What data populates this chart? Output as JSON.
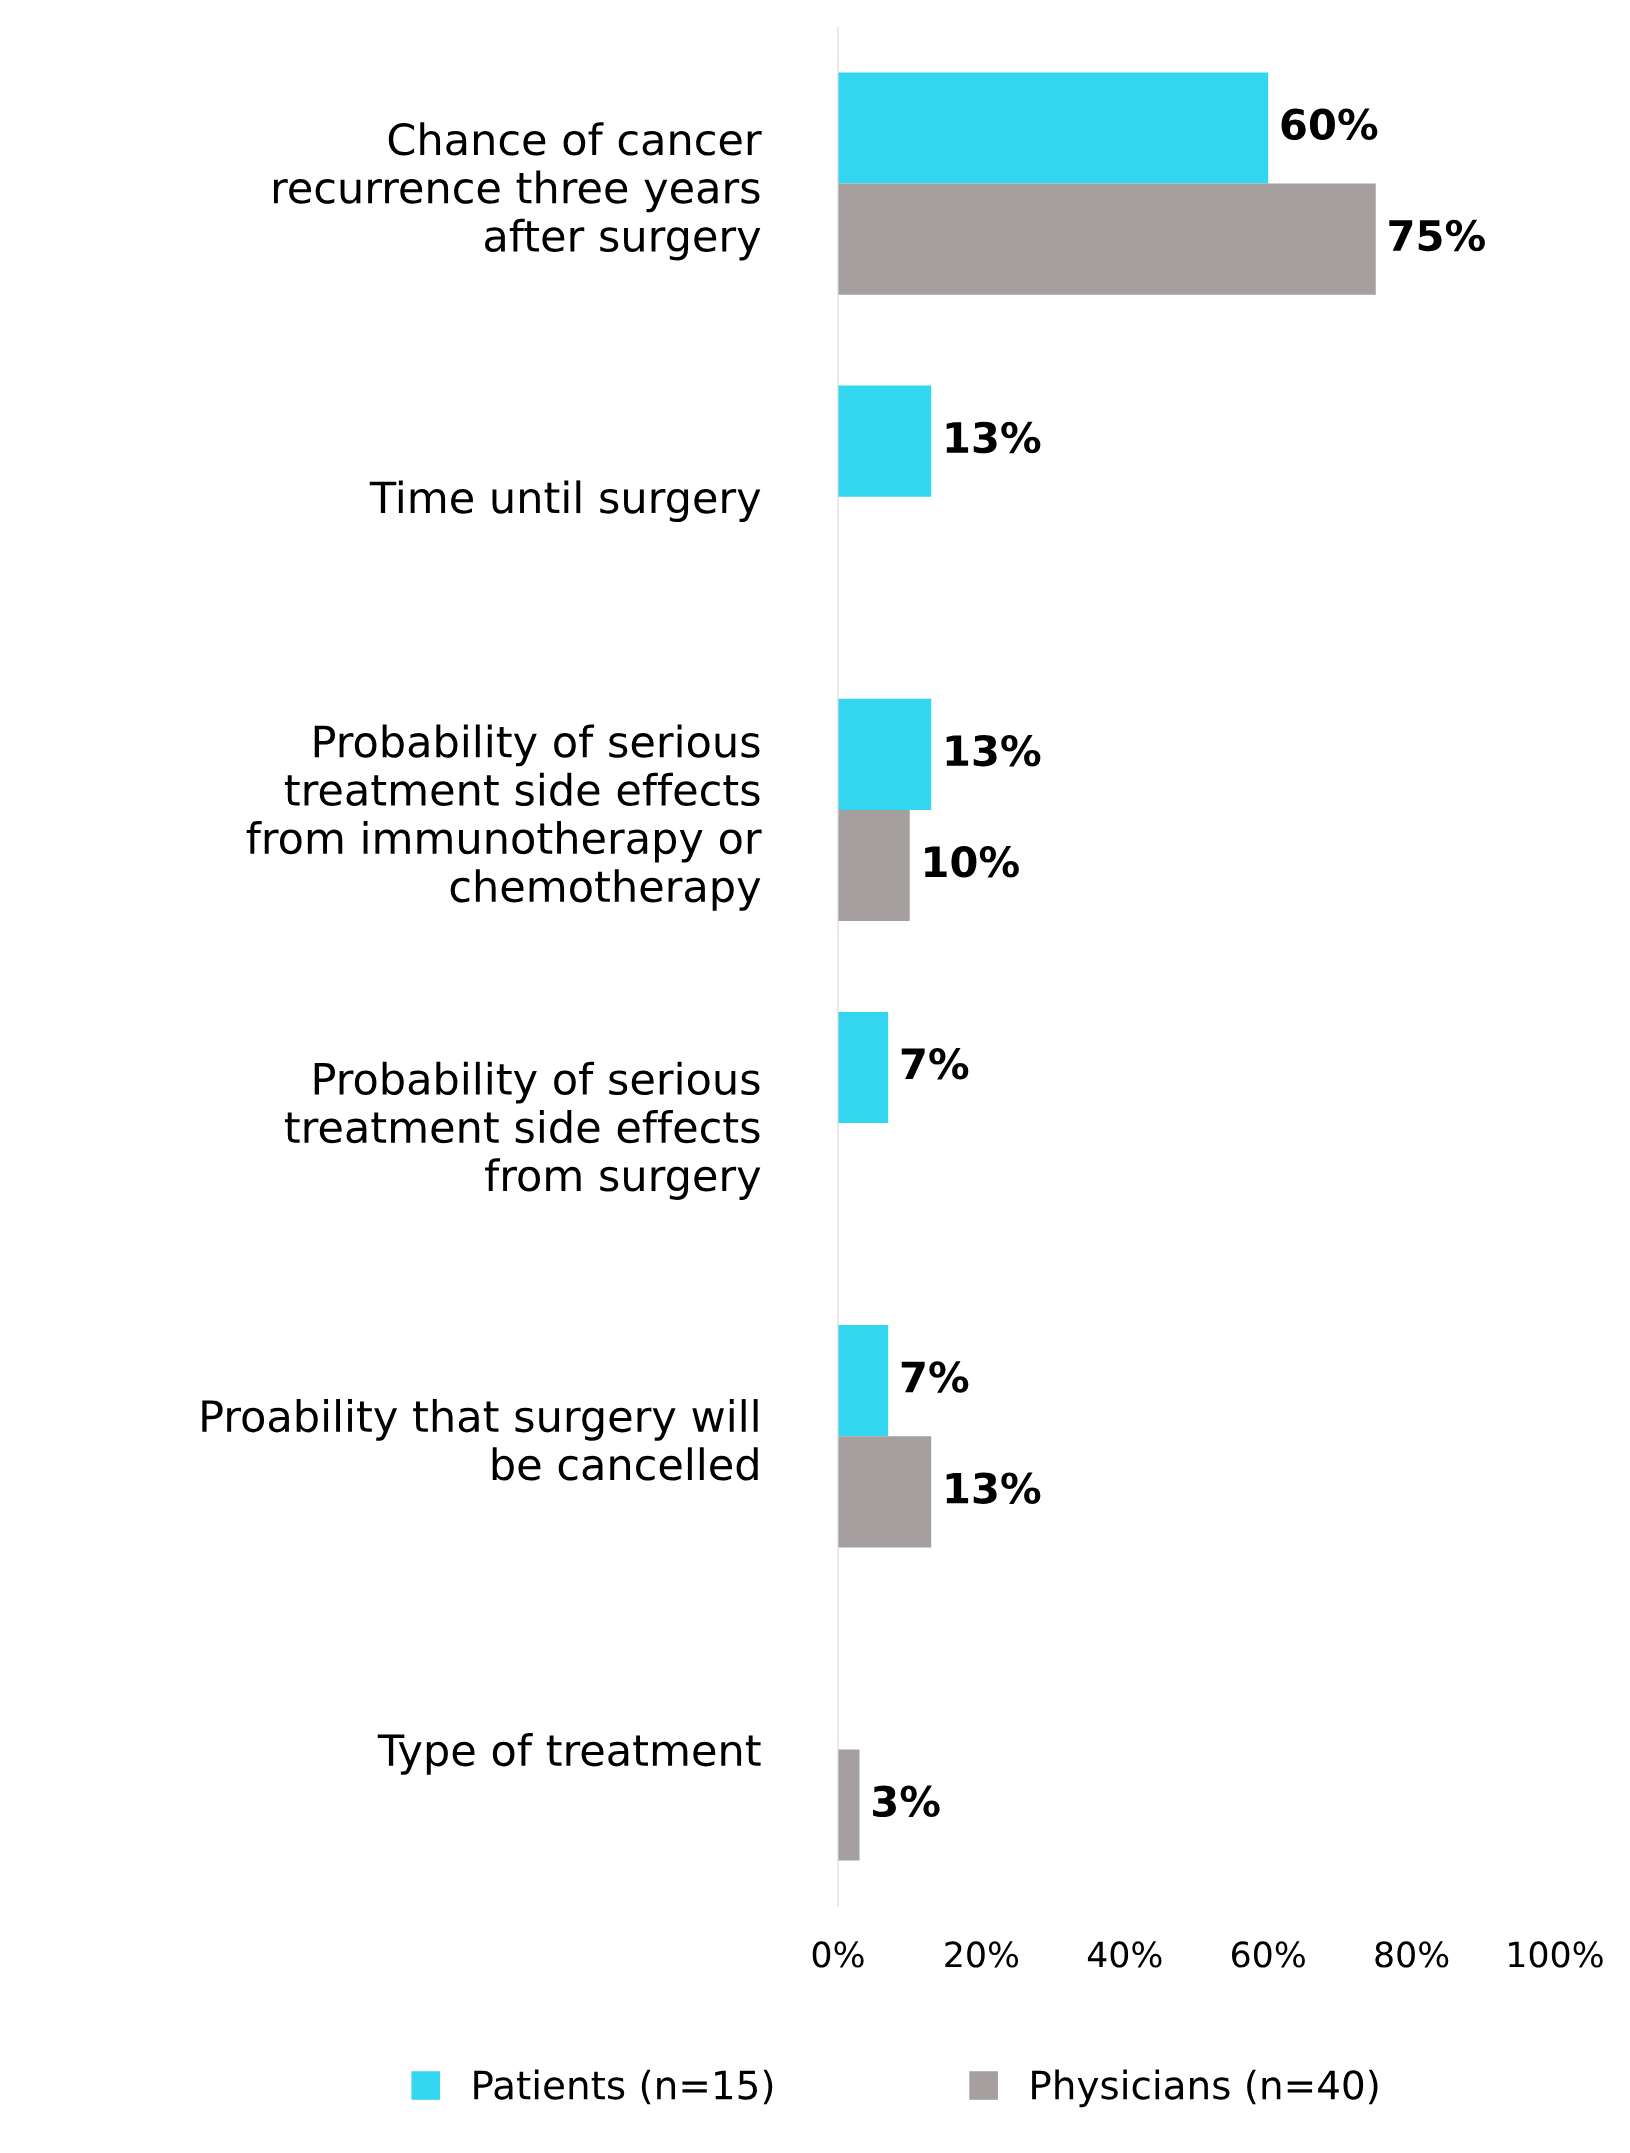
{
  "chart_data": {
    "type": "bar",
    "orientation": "horizontal",
    "categories": [
      "Chance of cancer\nrecurrence three years\nafter surgery",
      "Time until surgery",
      "Probability of serious\ntreatment side effects\nfrom immunotherapy or\nchemotherapy",
      "Probability of serious\ntreatment side effects\nfrom surgery",
      "Proability that surgery will\nbe cancelled",
      "Type of treatment"
    ],
    "series": [
      {
        "name": "Patients (n=15)",
        "color": "#33d6ef",
        "values": [
          60,
          13,
          13,
          7,
          7,
          null
        ],
        "value_labels": [
          "60%",
          "13%",
          "13%",
          "7%",
          "7%",
          null
        ]
      },
      {
        "name": "Physicians (n=40)",
        "color": "#a59f9f",
        "values": [
          75,
          null,
          10,
          null,
          13,
          3
        ],
        "value_labels": [
          "75%",
          null,
          "10%",
          null,
          "13%",
          "3%"
        ]
      }
    ],
    "xlim": [
      0,
      100
    ],
    "xticks": [
      {
        "value": 0,
        "label": "0%"
      },
      {
        "value": 20,
        "label": "20%"
      },
      {
        "value": 40,
        "label": "40%"
      },
      {
        "value": 60,
        "label": "60%"
      },
      {
        "value": 80,
        "label": "80%"
      },
      {
        "value": 100,
        "label": "100%"
      }
    ],
    "grid": false,
    "legend": "bottom"
  }
}
